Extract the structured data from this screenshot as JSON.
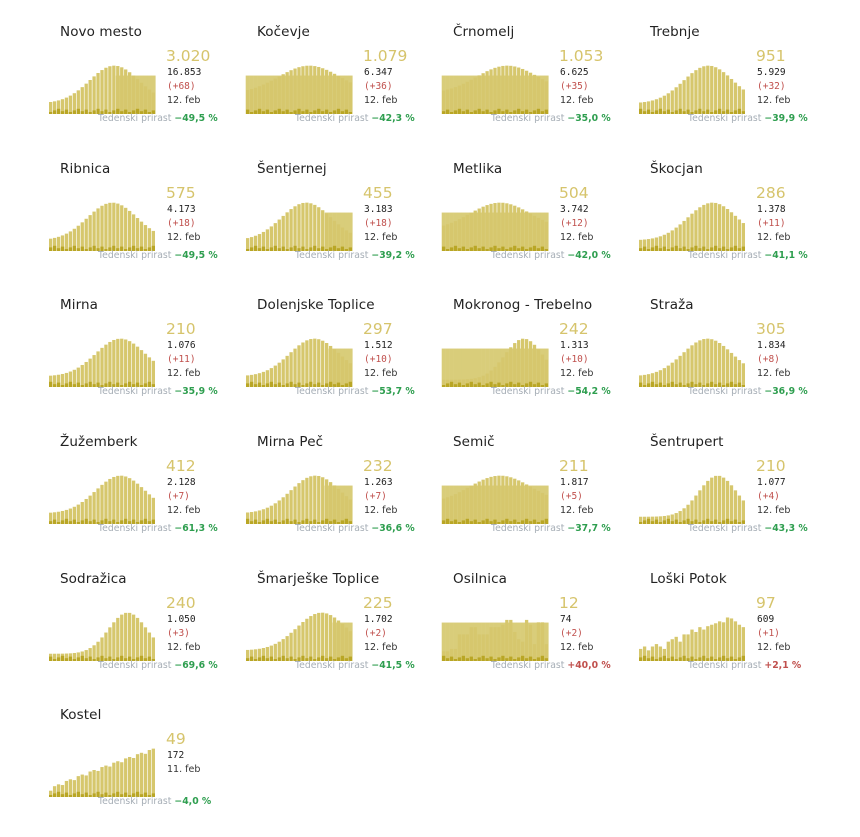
{
  "colors": {
    "bar_main": "#d6c76d",
    "bar_dark": "#b9a625",
    "accent": "#d6c46c",
    "increase": "#c0504d",
    "decrease": "#2e9e4f",
    "muted": "#a6aeb6"
  },
  "footer_label": "Tedenski prirast",
  "cards": [
    {
      "name": "Novo mesto",
      "active": "3.020",
      "total": "16.853",
      "delta": "(+68)",
      "date": "12. feb",
      "growth": "−49,5 %",
      "growth_dir": "neg",
      "shape": "hump",
      "peak": 0.62,
      "shaded_from": 0.62
    },
    {
      "name": "Kočevje",
      "active": "1.079",
      "total": "6.347",
      "delta": "(+36)",
      "date": "12. feb",
      "growth": "−42,3 %",
      "growth_dir": "neg",
      "shape": "plateau",
      "peak": 0.6,
      "shaded_from": 0.0
    },
    {
      "name": "Črnomelj",
      "active": "1.053",
      "total": "6.625",
      "delta": "(+35)",
      "date": "12. feb",
      "growth": "−35,0 %",
      "growth_dir": "neg",
      "shape": "plateau",
      "peak": 0.62,
      "shaded_from": 0.0
    },
    {
      "name": "Trebnje",
      "active": "951",
      "total": "5.929",
      "delta": "(+32)",
      "date": "12. feb",
      "growth": "−39,9 %",
      "growth_dir": "neg",
      "shape": "hump",
      "peak": 0.66,
      "shaded_from": 1.0
    },
    {
      "name": "Ribnica",
      "active": "575",
      "total": "4.173",
      "delta": "(+18)",
      "date": "12. feb",
      "growth": "−49,5 %",
      "growth_dir": "neg",
      "shape": "hump",
      "peak": 0.6,
      "shaded_from": 1.0
    },
    {
      "name": "Šentjernej",
      "active": "455",
      "total": "3.183",
      "delta": "(+18)",
      "date": "12. feb",
      "growth": "−39,2 %",
      "growth_dir": "neg",
      "shape": "hump",
      "peak": 0.57,
      "shaded_from": 0.74
    },
    {
      "name": "Metlika",
      "active": "504",
      "total": "3.742",
      "delta": "(+12)",
      "date": "12. feb",
      "growth": "−42,0 %",
      "growth_dir": "neg",
      "shape": "plateau",
      "peak": 0.55,
      "shaded_from": 0.0
    },
    {
      "name": "Škocjan",
      "active": "286",
      "total": "1.378",
      "delta": "(+11)",
      "date": "12. feb",
      "growth": "−41,1 %",
      "growth_dir": "neg",
      "shape": "hump",
      "peak": 0.7,
      "shaded_from": 1.0
    },
    {
      "name": "Mirna",
      "active": "210",
      "total": "1.076",
      "delta": "(+11)",
      "date": "12. feb",
      "growth": "−35,9 %",
      "growth_dir": "neg",
      "shape": "hump",
      "peak": 0.68,
      "shaded_from": 1.0
    },
    {
      "name": "Dolenjske Toplice",
      "active": "297",
      "total": "1.512",
      "delta": "(+10)",
      "date": "12. feb",
      "growth": "−53,7 %",
      "growth_dir": "neg",
      "shape": "hump",
      "peak": 0.65,
      "shaded_from": 0.78
    },
    {
      "name": "Mokronog - Trebelno",
      "active": "242",
      "total": "1.313",
      "delta": "(+10)",
      "date": "12. feb",
      "growth": "−54,2 %",
      "growth_dir": "neg",
      "shape": "late",
      "peak": 0.78,
      "shaded_from": 0.0
    },
    {
      "name": "Straža",
      "active": "305",
      "total": "1.834",
      "delta": "(+8)",
      "date": "12. feb",
      "growth": "−36,9 %",
      "growth_dir": "neg",
      "shape": "hump",
      "peak": 0.65,
      "shaded_from": 1.0
    },
    {
      "name": "Žužemberk",
      "active": "412",
      "total": "2.128",
      "delta": "(+7)",
      "date": "12. feb",
      "growth": "−61,3 %",
      "growth_dir": "neg",
      "shape": "hump",
      "peak": 0.68,
      "shaded_from": 1.0
    },
    {
      "name": "Mirna Peč",
      "active": "232",
      "total": "1.263",
      "delta": "(+7)",
      "date": "12. feb",
      "growth": "−36,6 %",
      "growth_dir": "neg",
      "shape": "hump",
      "peak": 0.66,
      "shaded_from": 0.74
    },
    {
      "name": "Semič",
      "active": "211",
      "total": "1.817",
      "delta": "(+5)",
      "date": "12. feb",
      "growth": "−37,7 %",
      "growth_dir": "neg",
      "shape": "plateau",
      "peak": 0.55,
      "shaded_from": 0.0
    },
    {
      "name": "Šentrupert",
      "active": "210",
      "total": "1.077",
      "delta": "(+4)",
      "date": "12. feb",
      "growth": "−43,3 %",
      "growth_dir": "neg",
      "shape": "late",
      "peak": 0.75,
      "shaded_from": 1.0
    },
    {
      "name": "Sodražica",
      "active": "240",
      "total": "1.050",
      "delta": "(+3)",
      "date": "12. feb",
      "growth": "−69,6 %",
      "growth_dir": "neg",
      "shape": "late",
      "peak": 0.75,
      "shaded_from": 1.0
    },
    {
      "name": "Šmarješke Toplice",
      "active": "225",
      "total": "1.702",
      "delta": "(+2)",
      "date": "12. feb",
      "growth": "−41,5 %",
      "growth_dir": "neg",
      "shape": "hump",
      "peak": 0.72,
      "shaded_from": 0.82
    },
    {
      "name": "Osilnica",
      "active": "12",
      "total": "74",
      "delta": "(+2)",
      "date": "12. feb",
      "growth": "+40,0 %",
      "growth_dir": "pos",
      "shape": "jagged",
      "peak": 0.8,
      "shaded_from": 0.0
    },
    {
      "name": "Loški Potok",
      "active": "97",
      "total": "609",
      "delta": "(+1)",
      "date": "12. feb",
      "growth": "+2,1 %",
      "growth_dir": "pos",
      "shape": "jagged2",
      "peak": 0.8,
      "shaded_from": 1.0
    },
    {
      "name": "Kostel",
      "active": "49",
      "total": "172",
      "delta": "",
      "date": "11. feb",
      "growth": "−4,0 %",
      "growth_dir": "neg",
      "shape": "rising",
      "peak": 0.95,
      "shaded_from": 1.0
    }
  ]
}
